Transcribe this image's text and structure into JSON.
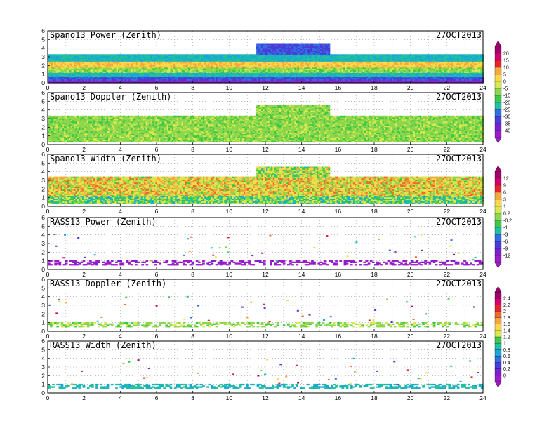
{
  "chart_data": [
    {
      "type": "heatmap",
      "title": "Spano13 Power (Zenith)",
      "date": "27OCT2013",
      "xlim": [
        0,
        24
      ],
      "ylim": [
        0,
        6
      ],
      "xticks": [
        "0",
        "2",
        "4",
        "6",
        "8",
        "10",
        "12",
        "14",
        "16",
        "18",
        "20",
        "22",
        "24"
      ],
      "yticks": [
        "0",
        "1",
        "2",
        "3",
        "4",
        "5",
        "6"
      ],
      "grid": true,
      "layers": [
        {
          "y_from": 0.0,
          "y_to": 0.3,
          "x_from": 0.0,
          "x_to": 24.0,
          "value": -40
        },
        {
          "y_from": 0.3,
          "y_to": 0.7,
          "x_from": 0.0,
          "x_to": 24.0,
          "value": -30
        },
        {
          "y_from": 0.7,
          "y_to": 1.2,
          "x_from": 0.0,
          "x_to": 24.0,
          "value": -20
        },
        {
          "y_from": 1.2,
          "y_to": 1.8,
          "x_from": 0.0,
          "x_to": 24.0,
          "value": -10
        },
        {
          "y_from": 1.8,
          "y_to": 2.5,
          "x_from": 0.0,
          "x_to": 24.0,
          "value": 0
        },
        {
          "y_from": 2.5,
          "y_to": 3.3,
          "x_from": 0.0,
          "x_to": 24.0,
          "value": -20
        },
        {
          "y_from": 3.3,
          "y_to": 4.5,
          "x_from": 11.5,
          "x_to": 15.5,
          "value": -30
        }
      ]
    },
    {
      "type": "heatmap",
      "title": "Spano13 Doppler (Zenith)",
      "date": "27OCT2013",
      "xlim": [
        0,
        24
      ],
      "ylim": [
        0,
        6
      ],
      "xticks": [
        "0",
        "2",
        "4",
        "6",
        "8",
        "10",
        "12",
        "14",
        "16",
        "18",
        "20",
        "22",
        "24"
      ],
      "yticks": [
        "0",
        "1",
        "2",
        "3",
        "4",
        "5",
        "6"
      ],
      "grid": true,
      "layers": [
        {
          "y_from": 0.3,
          "y_to": 3.3,
          "x_from": 0.0,
          "x_to": 24.0,
          "value": 0
        },
        {
          "y_from": 3.3,
          "y_to": 4.5,
          "x_from": 11.5,
          "x_to": 15.5,
          "value": 0
        }
      ]
    },
    {
      "type": "heatmap",
      "title": "Spano13 Width (Zenith)",
      "date": "27OCT2013",
      "xlim": [
        0,
        24
      ],
      "ylim": [
        0,
        6
      ],
      "xticks": [
        "0",
        "2",
        "4",
        "6",
        "8",
        "10",
        "12",
        "14",
        "16",
        "18",
        "20",
        "22",
        "24"
      ],
      "yticks": [
        "0",
        "1",
        "2",
        "3",
        "4",
        "5",
        "6"
      ],
      "grid": true,
      "layers": [
        {
          "y_from": 0.3,
          "y_to": 1.2,
          "x_from": 0.0,
          "x_to": 24.0,
          "value": -1
        },
        {
          "y_from": 1.2,
          "y_to": 3.3,
          "x_from": 0.0,
          "x_to": 24.0,
          "value": 3
        },
        {
          "y_from": 3.3,
          "y_to": 4.5,
          "x_from": 11.5,
          "x_to": 15.5,
          "value": 1
        }
      ]
    },
    {
      "type": "heatmap",
      "title": "RASS13 Power (Zenith)",
      "date": "27OCT2013",
      "xlim": [
        0,
        24
      ],
      "ylim": [
        0,
        6
      ],
      "xticks": [
        "0",
        "2",
        "4",
        "6",
        "8",
        "10",
        "12",
        "14",
        "16",
        "18",
        "20",
        "22",
        "24"
      ],
      "yticks": [
        "0",
        "1",
        "2",
        "3",
        "4",
        "5",
        "6"
      ],
      "grid": true,
      "layers": [
        {
          "y_from": 0.5,
          "y_to": 1.0,
          "x_from": 0.0,
          "x_to": 24.0,
          "value": -12
        }
      ]
    },
    {
      "type": "heatmap",
      "title": "RASS13 Doppler (Zenith)",
      "date": "27OCT2013",
      "xlim": [
        0,
        24
      ],
      "ylim": [
        0,
        6
      ],
      "xticks": [
        "0",
        "2",
        "4",
        "6",
        "8",
        "10",
        "12",
        "14",
        "16",
        "18",
        "20",
        "22",
        "24"
      ],
      "yticks": [
        "0",
        "1",
        "2",
        "3",
        "4",
        "5",
        "6"
      ],
      "grid": true,
      "layers": [
        {
          "y_from": 0.5,
          "y_to": 1.0,
          "x_from": 0.0,
          "x_to": 24.0,
          "value": 1.2
        }
      ]
    },
    {
      "type": "heatmap",
      "title": "RASS13 Width (Zenith)",
      "date": "27OCT2013",
      "xlim": [
        0,
        24
      ],
      "ylim": [
        0,
        6
      ],
      "xticks": [
        "0",
        "2",
        "4",
        "6",
        "8",
        "10",
        "12",
        "14",
        "16",
        "18",
        "20",
        "22",
        "24"
      ],
      "yticks": [
        "0",
        "1",
        "2",
        "3",
        "4",
        "5",
        "6"
      ],
      "grid": true,
      "layers": [
        {
          "y_from": 0.5,
          "y_to": 1.0,
          "x_from": 0.0,
          "x_to": 24.0,
          "value": 0.8
        }
      ]
    }
  ],
  "colorbars": [
    {
      "labels": [
        "20",
        "15",
        "10",
        "5",
        "0",
        "-5",
        "-15",
        "-20",
        "-25",
        "-30",
        "-35",
        "-40"
      ]
    },
    {
      "labels": [
        "12",
        "9",
        "6",
        "3",
        "1",
        "0.2",
        "-0.2",
        "-1",
        "-3",
        "-6",
        "-9",
        "-12"
      ]
    },
    {
      "labels": [
        "2.4",
        "2.2",
        "2",
        "1.8",
        "1.6",
        "1.4",
        "1.2",
        "1",
        "0.8",
        "0.6",
        "0.4",
        "0.2",
        "0"
      ]
    }
  ],
  "colors": {
    "scale": [
      "#a0006e",
      "#d4006e",
      "#e8232d",
      "#f26a2a",
      "#f7a83c",
      "#ffd84a",
      "#d9e84e",
      "#8ed64b",
      "#3ec84a",
      "#20c0a0",
      "#18a8d8",
      "#3070e0",
      "#4a3cd8",
      "#7a20d0",
      "#9c1cc8"
    ]
  }
}
